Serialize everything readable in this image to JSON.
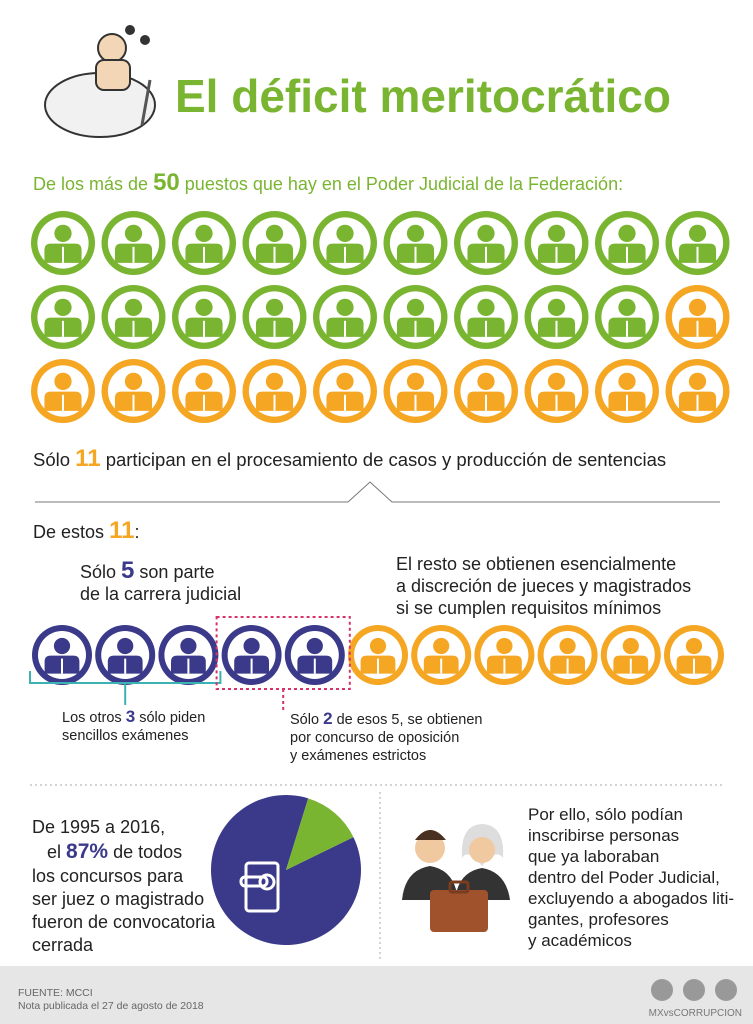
{
  "title": "El déficit meritocrático",
  "intro": {
    "before": "De los más de",
    "number": 50,
    "after": "puestos que hay en el Poder Judicial de la Federación:"
  },
  "icon_count": 30,
  "participate": {
    "before": "Sólo",
    "number": 11,
    "after": "participan en el procesamiento de casos y producción de sentencias"
  },
  "of_these": {
    "before": "De estos",
    "number": 11,
    "after": ":"
  },
  "career": {
    "before": "Sólo",
    "number": 5,
    "after": "son parte",
    "line2": "de la carrera judicial"
  },
  "rest": {
    "lines": [
      "El resto se obtienen esencialmente",
      "a discreción de jueces y magistrados",
      "si se cumplen requisitos mínimos"
    ]
  },
  "others": {
    "before": "Los otros",
    "number": 3,
    "after": "sólo piden",
    "line2": "sencillos exámenes"
  },
  "strict": {
    "before": "Sólo",
    "number": 2,
    "after": "de esos 5, se obtienen",
    "lines": [
      "por concurso de oposición",
      "y exámenes estrictos"
    ]
  },
  "closed": {
    "line1": "De 1995 a 2016,",
    "before": "el",
    "value": 87,
    "value_label": "87%",
    "after": "de todos",
    "lines": [
      "los concursos para",
      "ser juez o magistrado",
      "fueron de convocatoria",
      "cerrada"
    ]
  },
  "consequence": {
    "lines": [
      "Por ello, sólo podían",
      "inscribirse personas",
      "que ya laboraban",
      "dentro del Poder Judicial,",
      "excluyendo a abogados liti-",
      "gantes, profesores",
      "y académicos"
    ]
  },
  "footer": {
    "source": "FUENTE: MCCI",
    "note": "Nota publicada el 27 de agosto de 2018",
    "brand": "MXvsCORRUPCION"
  }
}
